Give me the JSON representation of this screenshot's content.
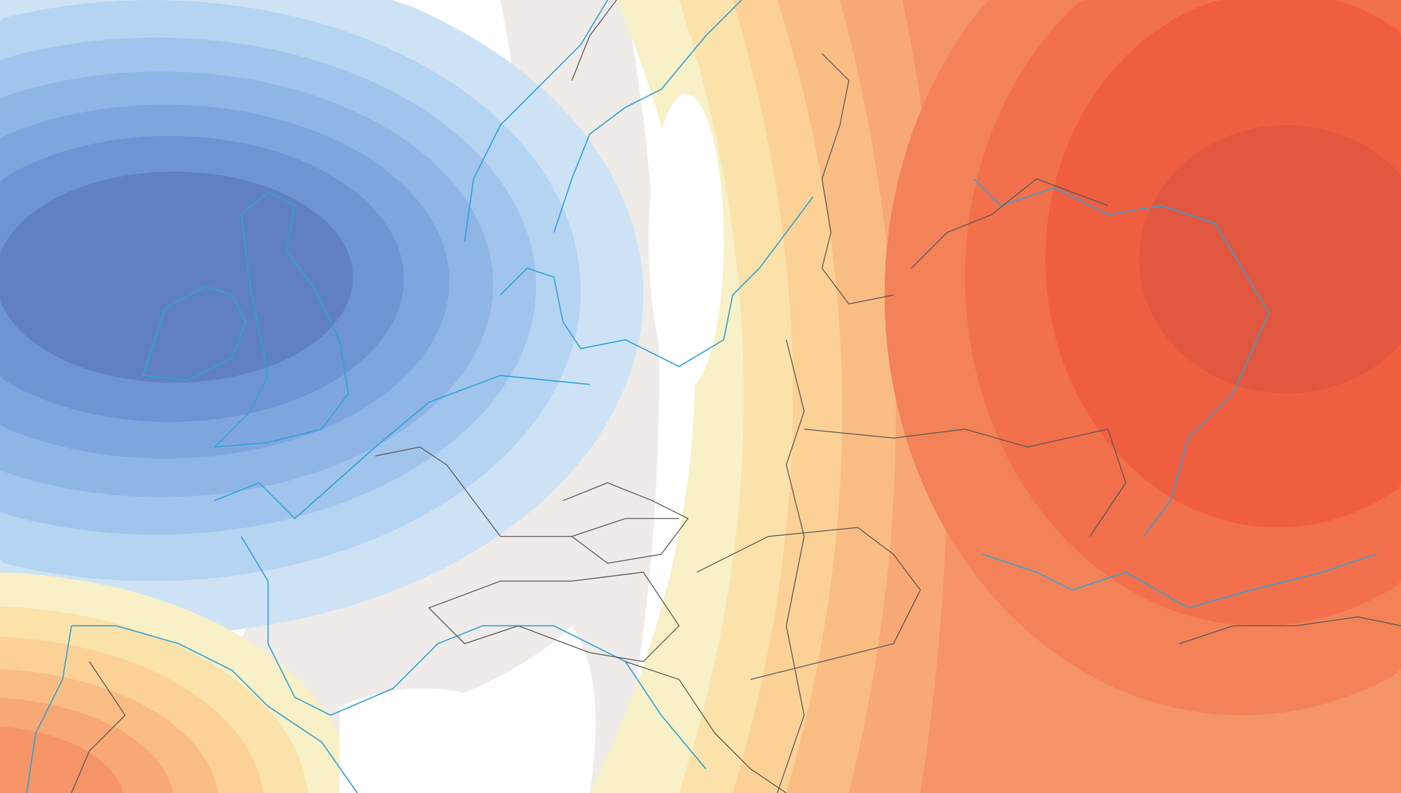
{
  "map": {
    "background": "#ffffff",
    "neutral": "#efebe8",
    "coastline_color": "#2fa3d6",
    "border_color": "#555555",
    "cold_anomaly_bands": [
      "#cde3f5",
      "#b5d4f1",
      "#a1c4ec",
      "#8fb5e6",
      "#7fa5de",
      "#6f94d2",
      "#6180c2"
    ],
    "warm_anomaly_bands": [
      "#f8f0c6",
      "#fae2aa",
      "#fbd196",
      "#f9bd83",
      "#f8a874",
      "#f59466",
      "#f38258",
      "#f2704c",
      "#f05e40",
      "#e2573f"
    ]
  }
}
